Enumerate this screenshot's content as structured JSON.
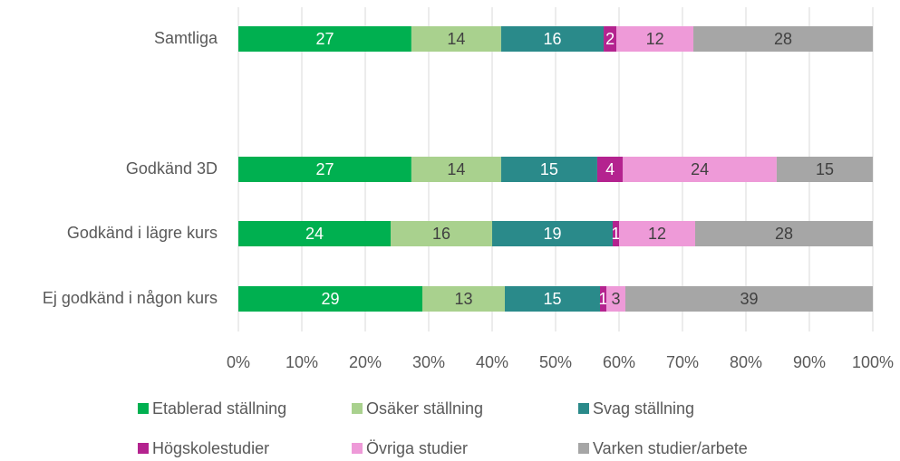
{
  "chart_data": {
    "type": "bar",
    "orientation": "horizontal",
    "stacked": "percent",
    "categories": [
      "Samtliga",
      null,
      "Godkänd 3D",
      "Godkänd i lägre kurs",
      "Ej godkänd i någon kurs"
    ],
    "series": [
      {
        "name": "Etablerad ställning",
        "color": "#00b050",
        "values": [
          27,
          null,
          27,
          24,
          29
        ]
      },
      {
        "name": "Osäker ställning",
        "color": "#a9d18e",
        "values": [
          14,
          null,
          14,
          16,
          13
        ]
      },
      {
        "name": "Svag ställning",
        "color": "#2a8a8a",
        "values": [
          16,
          null,
          15,
          19,
          15
        ]
      },
      {
        "name": "Högskolestudier",
        "color": "#b4238f",
        "values": [
          2,
          null,
          4,
          1,
          1
        ]
      },
      {
        "name": "Övriga studier",
        "color": "#ee9ad8",
        "values": [
          12,
          null,
          24,
          12,
          3
        ]
      },
      {
        "name": "Varken studier/arbete",
        "color": "#a6a6a6",
        "values": [
          28,
          null,
          15,
          28,
          39
        ]
      }
    ],
    "xlim": [
      0,
      100
    ],
    "xticks": [
      {
        "value": 0,
        "label": "0%"
      },
      {
        "value": 10,
        "label": "10%"
      },
      {
        "value": 20,
        "label": "20%"
      },
      {
        "value": 30,
        "label": "30%"
      },
      {
        "value": 40,
        "label": "40%"
      },
      {
        "value": 50,
        "label": "50%"
      },
      {
        "value": 60,
        "label": "60%"
      },
      {
        "value": 70,
        "label": "70%"
      },
      {
        "value": 80,
        "label": "80%"
      },
      {
        "value": 90,
        "label": "90%"
      },
      {
        "value": 100,
        "label": "100%"
      }
    ],
    "grid": true,
    "legend": "bottom"
  }
}
